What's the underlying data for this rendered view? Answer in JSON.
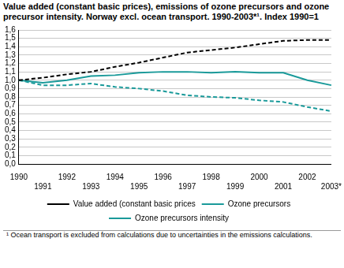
{
  "chart_data": {
    "type": "line",
    "title": "Value added (constant basic prices), emissions of ozone precursors and ozone precursor intensity. Norway excl. ocean transport. 1990-2003*¹. Index 1990=1",
    "footnote": "¹ Ocean transport is excluded from calculations due to uncertainties in the emissions calculations.",
    "categories": [
      "1990",
      "1991",
      "1992",
      "1993",
      "1994",
      "1995",
      "1996",
      "1997",
      "1998",
      "1999",
      "2000",
      "2001",
      "2002",
      "2003*"
    ],
    "series": [
      {
        "name": "Value added (constant basic prices",
        "color": "#000000",
        "line_style": "dashed",
        "values": [
          1.0,
          1.03,
          1.07,
          1.1,
          1.16,
          1.21,
          1.27,
          1.33,
          1.36,
          1.39,
          1.43,
          1.47,
          1.48,
          1.48
        ]
      },
      {
        "name": "Ozone precursors",
        "color": "#1a9a9a",
        "line_style": "solid",
        "values": [
          1.0,
          0.97,
          1.0,
          1.05,
          1.06,
          1.09,
          1.1,
          1.1,
          1.09,
          1.1,
          1.09,
          1.09,
          1.0,
          0.94
        ]
      },
      {
        "name": "Ozone precursors intensity",
        "color": "#1a9a9a",
        "line_style": "dashed",
        "values": [
          1.0,
          0.94,
          0.94,
          0.96,
          0.92,
          0.9,
          0.87,
          0.82,
          0.8,
          0.79,
          0.76,
          0.74,
          0.68,
          0.63
        ]
      }
    ],
    "ylim": [
      0,
      1.6
    ],
    "yticks": [
      {
        "value": 0,
        "label": "0,0"
      },
      {
        "value": 0.1,
        "label": "0,1"
      },
      {
        "value": 0.2,
        "label": "0,2"
      },
      {
        "value": 0.3,
        "label": "0,3"
      },
      {
        "value": 0.4,
        "label": "0,4"
      },
      {
        "value": 0.5,
        "label": "0,5"
      },
      {
        "value": 0.6,
        "label": "0,6"
      },
      {
        "value": 0.7,
        "label": "0,7"
      },
      {
        "value": 0.8,
        "label": "0,8"
      },
      {
        "value": 0.9,
        "label": "0,9"
      },
      {
        "value": 1,
        "label": "1,0"
      },
      {
        "value": 1.1,
        "label": "1,1"
      },
      {
        "value": 1.2,
        "label": "1,2"
      },
      {
        "value": 1.3,
        "label": "1,3"
      },
      {
        "value": 1.4,
        "label": "1,4"
      },
      {
        "value": 1.5,
        "label": "1,5"
      },
      {
        "value": 1.6,
        "label": "1,6"
      }
    ],
    "grid": true,
    "legend": "bottom"
  }
}
